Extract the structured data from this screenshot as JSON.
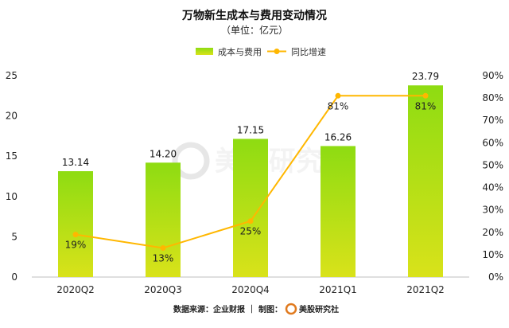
{
  "chart_data": {
    "type": "bar",
    "title": "万物新生成本与费用变动情况",
    "subtitle": "（单位：亿元）",
    "categories": [
      "2020Q2",
      "2020Q3",
      "2020Q4",
      "2021Q1",
      "2021Q2"
    ],
    "series": [
      {
        "name": "成本与费用",
        "type": "bar",
        "axis": "left",
        "values": [
          13.14,
          14.2,
          17.15,
          16.26,
          23.79
        ],
        "labels": [
          "13.14",
          "14.20",
          "17.15",
          "16.26",
          "23.79"
        ]
      },
      {
        "name": "同比增速",
        "type": "line",
        "axis": "right",
        "values": [
          19,
          13,
          25,
          81,
          81
        ],
        "labels": [
          "19%",
          "13%",
          "25%",
          "81%",
          "81%"
        ]
      }
    ],
    "y_left": {
      "ylim": [
        0,
        25
      ],
      "ticks": [
        "0",
        "5",
        "10",
        "15",
        "20",
        "25"
      ]
    },
    "y_right": {
      "ylim": [
        0,
        90
      ],
      "ticks": [
        "0%",
        "10%",
        "20%",
        "30%",
        "40%",
        "50%",
        "60%",
        "70%",
        "80%",
        "90%"
      ]
    },
    "legend_position": "top-center",
    "grid": false,
    "colors": {
      "bar_top": "#8edc12",
      "bar_bottom": "#d9e21a",
      "line": "#ffb700"
    }
  },
  "footer": {
    "source": "数据来源：企业财报 ｜ 制图：",
    "brand": "美股研究社"
  },
  "watermark": "美股研究社"
}
